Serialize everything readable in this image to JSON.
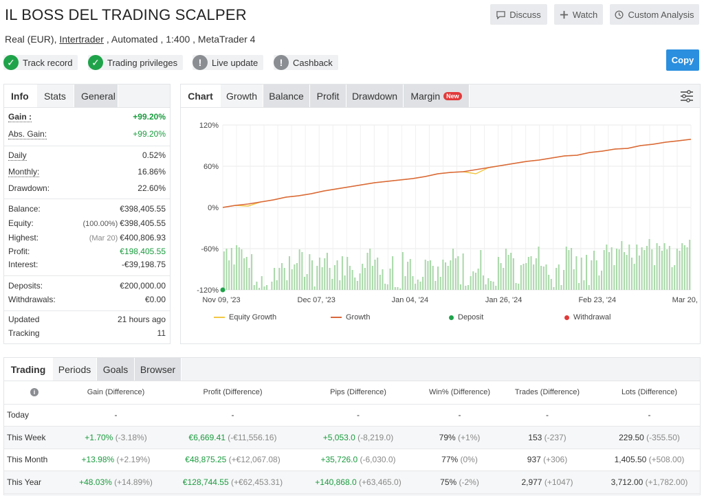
{
  "header": {
    "title": "IL BOSS DEL TRADING SCALPER",
    "sub_before": "Real (EUR), ",
    "broker": "Intertrader",
    "sub_after": " , Automated , 1:400 , MetaTrader 4",
    "buttons": {
      "discuss": "Discuss",
      "watch": "Watch",
      "custom": "Custom Analysis"
    },
    "copy": "Copy"
  },
  "badges": [
    {
      "label": "Track record",
      "icon": "check-icon",
      "color": "#1fa34a"
    },
    {
      "label": "Trading privileges",
      "icon": "check-icon",
      "color": "#1fa34a"
    },
    {
      "label": "Live update",
      "icon": "exclamation-icon",
      "color": "#8a8d91"
    },
    {
      "label": "Cashback",
      "icon": "exclamation-icon",
      "color": "#8a8d91"
    }
  ],
  "info_tabs": [
    "Info",
    "Stats",
    "General"
  ],
  "info": {
    "gain": {
      "label": "Gain :",
      "value": "+99.20%"
    },
    "abs_gain": {
      "label": "Abs. Gain:",
      "value": "+99.20%"
    },
    "daily": {
      "label": "Daily",
      "value": "0.52%"
    },
    "monthly": {
      "label": "Monthly:",
      "value": "16.86%"
    },
    "drawdown": {
      "label": "Drawdown:",
      "value": "22.60%"
    },
    "balance": {
      "label": "Balance:",
      "value": "€398,405.55"
    },
    "equity": {
      "label": "Equity:",
      "note": "(100.00%)",
      "value": "€398,405.55"
    },
    "highest": {
      "label": "Highest:",
      "note": "(Mar 20)",
      "value": "€400,806.93"
    },
    "profit": {
      "label": "Profit:",
      "value": "€198,405.55"
    },
    "interest": {
      "label": "Interest:",
      "value": "-€39,198.75"
    },
    "deposits": {
      "label": "Deposits:",
      "value": "€200,000.00"
    },
    "withdrawals": {
      "label": "Withdrawals:",
      "value": "€0.00"
    },
    "updated": {
      "label": "Updated",
      "value": "21 hours ago"
    },
    "tracking": {
      "label": "Tracking",
      "value": "11"
    }
  },
  "chart_tabs": [
    "Chart",
    "Growth",
    "Balance",
    "Profit",
    "Drawdown",
    "Margin"
  ],
  "chart_new_badge": "New",
  "chart_data": {
    "type": "line",
    "ylim": [
      -120,
      120
    ],
    "y_ticks": [
      "120%",
      "60%",
      "0%",
      "-60%",
      "-120%"
    ],
    "x_ticks": [
      "Nov 09, '23",
      "Dec 07, '23",
      "Jan 04, '24",
      "Jan 26, '24",
      "Feb 23, '24",
      "Mar 20, '24"
    ],
    "series": [
      {
        "name": "Growth",
        "color": "#d9663a",
        "points": [
          [
            0,
            0
          ],
          [
            10,
            3
          ],
          [
            20,
            5
          ],
          [
            30,
            8
          ],
          [
            40,
            11
          ],
          [
            50,
            15
          ],
          [
            60,
            17
          ],
          [
            70,
            20
          ],
          [
            80,
            24
          ],
          [
            90,
            27
          ],
          [
            100,
            30
          ],
          [
            110,
            33
          ],
          [
            120,
            36
          ],
          [
            130,
            38
          ],
          [
            140,
            40
          ],
          [
            150,
            42
          ],
          [
            160,
            45
          ],
          [
            170,
            49
          ],
          [
            180,
            51
          ],
          [
            190,
            52
          ],
          [
            200,
            55
          ],
          [
            210,
            58
          ],
          [
            220,
            61
          ],
          [
            230,
            64
          ],
          [
            240,
            67
          ],
          [
            250,
            69
          ],
          [
            260,
            72
          ],
          [
            270,
            75
          ],
          [
            280,
            76
          ],
          [
            290,
            80
          ],
          [
            300,
            82
          ],
          [
            310,
            85
          ],
          [
            320,
            86
          ],
          [
            330,
            90
          ],
          [
            340,
            92
          ],
          [
            350,
            95
          ],
          [
            360,
            97
          ],
          [
            370,
            99.2
          ]
        ]
      },
      {
        "name": "Equity Growth",
        "color": "#f2c744",
        "points": [
          [
            0,
            0
          ],
          [
            10,
            3
          ],
          [
            20,
            2
          ],
          [
            30,
            8
          ],
          [
            40,
            11
          ],
          [
            50,
            15
          ],
          [
            60,
            17
          ],
          [
            70,
            20
          ],
          [
            80,
            24
          ],
          [
            90,
            27
          ],
          [
            100,
            30
          ],
          [
            110,
            33
          ],
          [
            120,
            36
          ],
          [
            130,
            38
          ],
          [
            140,
            40
          ],
          [
            150,
            42
          ],
          [
            160,
            45
          ],
          [
            170,
            49
          ],
          [
            180,
            51
          ],
          [
            190,
            52
          ],
          [
            200,
            49
          ],
          [
            210,
            58
          ],
          [
            220,
            61
          ],
          [
            230,
            64
          ],
          [
            240,
            67
          ],
          [
            250,
            69
          ],
          [
            260,
            72
          ],
          [
            270,
            75
          ],
          [
            280,
            76
          ],
          [
            290,
            80
          ],
          [
            300,
            82
          ],
          [
            310,
            85
          ],
          [
            320,
            86
          ],
          [
            330,
            90
          ],
          [
            340,
            92
          ],
          [
            350,
            95
          ],
          [
            360,
            97
          ],
          [
            370,
            99.2
          ]
        ]
      }
    ],
    "bars": {
      "name": "Daily gain",
      "color": "#a8d8a8",
      "values": [
        -64,
        -60,
        -77,
        -59,
        -83,
        -55,
        -58,
        -61,
        -74,
        -72,
        -88,
        -68,
        -113,
        -108,
        -117,
        -100,
        -115,
        -113,
        -120,
        -108,
        -88,
        -106,
        -88,
        -81,
        -88,
        -106,
        -71,
        -90,
        -83,
        -81,
        -61,
        -65,
        -101,
        -97,
        -68,
        -77,
        -115,
        -85,
        -73,
        -87,
        -74,
        -66,
        -88,
        -104,
        -84,
        -77,
        -106,
        -71,
        -99,
        -72,
        -85,
        -91,
        -102,
        -107,
        -96,
        -82,
        -88,
        -66,
        -60,
        -85,
        -76,
        -73,
        -98,
        -90,
        -111,
        -112,
        -89,
        -71,
        -116,
        -116,
        -118,
        -65,
        -100,
        -79,
        -75,
        -100,
        -111,
        -105,
        -108,
        -101,
        -76,
        -78,
        -77,
        -85,
        -107,
        -86,
        -101,
        -76,
        -80,
        -85,
        -77,
        -60,
        -74,
        -71,
        -112,
        -67,
        -114,
        -113,
        -100,
        -93,
        -95,
        -89,
        -62,
        -99,
        -112,
        -103,
        -107,
        -108,
        -114,
        -72,
        -81,
        -88,
        -60,
        -69,
        -66,
        -74,
        -110,
        -111,
        -84,
        -82,
        -81,
        -72,
        -71,
        -83,
        -74,
        -57,
        -85,
        -86,
        -83,
        -98,
        -104,
        -116,
        -88,
        -83,
        -113,
        -91,
        -57,
        -62,
        -59,
        -90,
        -71,
        -110,
        -73,
        -106,
        -69,
        -113,
        -77,
        -63,
        -77,
        -99,
        -92,
        -62,
        -54,
        -65,
        -58,
        -84,
        -60,
        -61,
        -49,
        -65,
        -69,
        -54,
        -73,
        -82,
        -54,
        -70,
        -58,
        -62,
        -56,
        -46,
        -61,
        -84,
        -52,
        -56,
        -63,
        -52,
        -61,
        -56,
        -87,
        -84,
        -60,
        -63,
        -52,
        -55,
        -58,
        -47
      ]
    },
    "deposit_marker": {
      "x": 0,
      "y": -120
    },
    "legend": [
      {
        "name": "Equity Growth",
        "color": "#f2c744",
        "kind": "line"
      },
      {
        "name": "Growth",
        "color": "#d9663a",
        "kind": "line"
      },
      {
        "name": "Deposit",
        "color": "#1fa34a",
        "kind": "dot"
      },
      {
        "name": "Withdrawal",
        "color": "#e23a3a",
        "kind": "dot"
      }
    ]
  },
  "periods_tabs": [
    "Trading",
    "Periods",
    "Goals",
    "Browser"
  ],
  "periods": {
    "columns": [
      "Gain (Difference)",
      "Profit (Difference)",
      "Pips (Difference)",
      "Win% (Difference)",
      "Trades (Difference)",
      "Lots (Difference)"
    ],
    "rows": [
      {
        "label": "Today",
        "cells": [
          [
            "-",
            ""
          ],
          [
            "-",
            ""
          ],
          [
            "-",
            ""
          ],
          [
            "-",
            ""
          ],
          [
            "-",
            ""
          ],
          [
            "-",
            ""
          ]
        ],
        "green": [
          false,
          false,
          false,
          false,
          false,
          false
        ]
      },
      {
        "label": "This Week",
        "cells": [
          [
            "+1.70%",
            "(-3.18%)"
          ],
          [
            "€6,669.41",
            "(-€11,556.16)"
          ],
          [
            "+5,053.0",
            "(-8,219.0)"
          ],
          [
            "79%",
            "(+1%)"
          ],
          [
            "153",
            "(-237)"
          ],
          [
            "229.50",
            "(-355.50)"
          ]
        ],
        "green": [
          true,
          true,
          true,
          false,
          false,
          false
        ]
      },
      {
        "label": "This Month",
        "cells": [
          [
            "+13.98%",
            "(+2.19%)"
          ],
          [
            "€48,875.25",
            "(+€12,067.08)"
          ],
          [
            "+35,726.0",
            "(-6,030.0)"
          ],
          [
            "77%",
            "(0%)"
          ],
          [
            "937",
            "(+306)"
          ],
          [
            "1,405.50",
            "(+508.00)"
          ]
        ],
        "green": [
          true,
          true,
          true,
          false,
          false,
          false
        ]
      },
      {
        "label": "This Year",
        "cells": [
          [
            "+48.03%",
            "(+14.89%)"
          ],
          [
            "€128,744.55",
            "(+€62,453.31)"
          ],
          [
            "+140,868.0",
            "(+63,465.0)"
          ],
          [
            "75%",
            "(-2%)"
          ],
          [
            "2,977",
            "(+1047)"
          ],
          [
            "3,712.00",
            "(+1,782.00)"
          ]
        ],
        "green": [
          true,
          true,
          true,
          false,
          false,
          false
        ]
      }
    ]
  }
}
